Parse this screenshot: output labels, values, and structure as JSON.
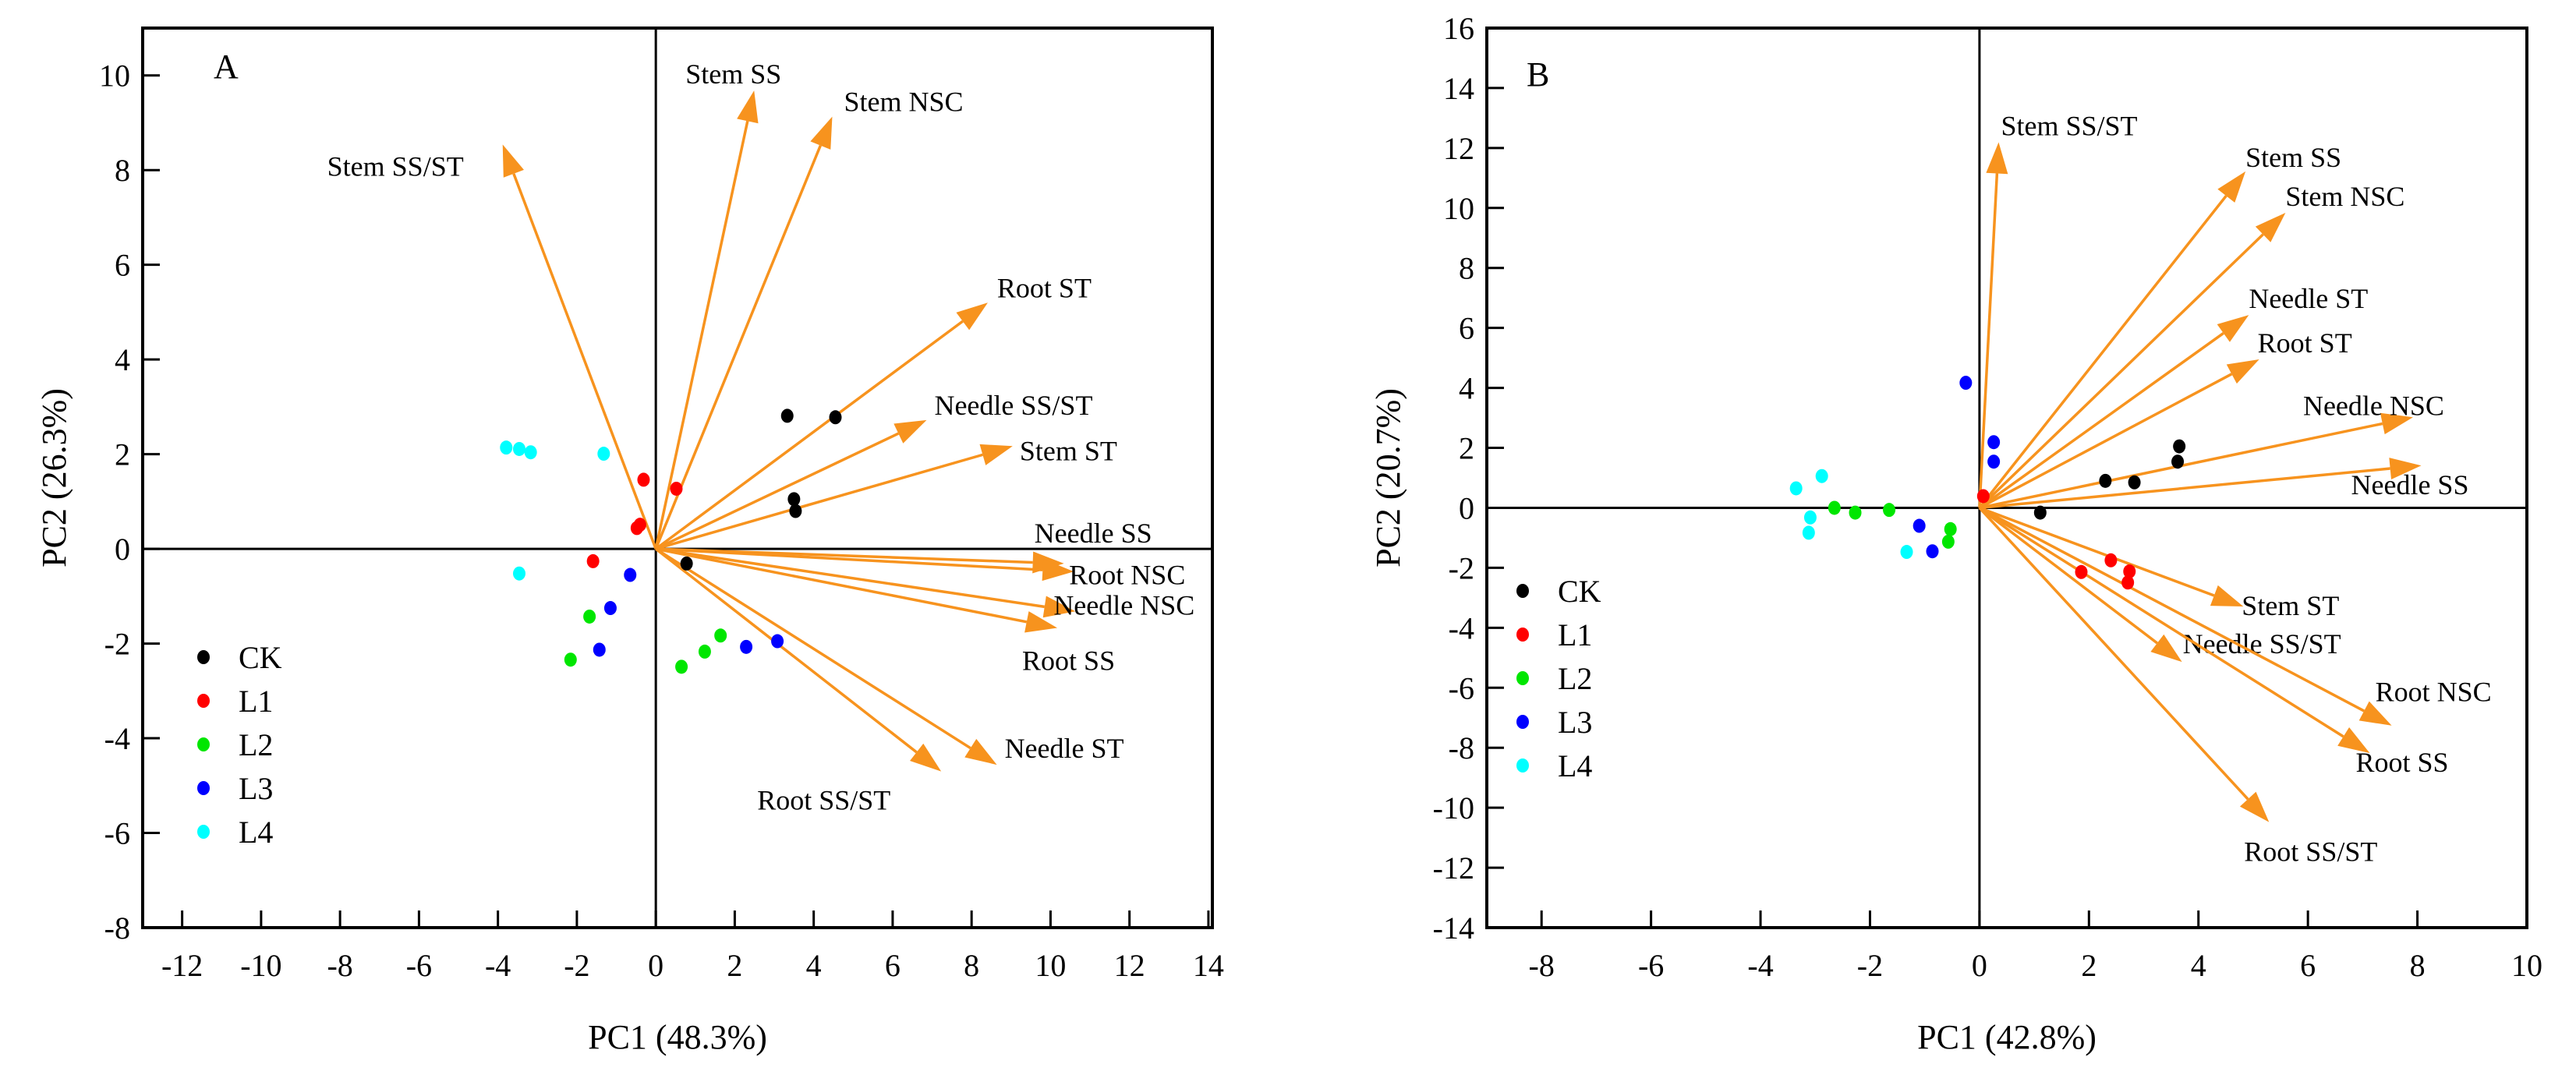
{
  "chart_data": [
    {
      "type": "scatter",
      "subtype": "pca-biplot",
      "panel_label": "A",
      "xlabel": "PC1 (48.3%)",
      "ylabel": "PC2 (26.3%)",
      "xlim": [
        -13,
        14.1
      ],
      "ylim": [
        -8,
        11
      ],
      "xticks": [
        -12,
        -10,
        -8,
        -6,
        -4,
        -2,
        0,
        2,
        4,
        6,
        8,
        10,
        12,
        14
      ],
      "yticks": [
        -8,
        -6,
        -4,
        -2,
        0,
        2,
        4,
        6,
        8,
        10
      ],
      "legend_position": "bottom-left",
      "series": [
        {
          "name": "CK",
          "color": "#000000",
          "points": [
            [
              3.33,
              2.81
            ],
            [
              4.55,
              2.78
            ],
            [
              3.5,
              1.05
            ],
            [
              3.54,
              0.8
            ],
            [
              0.78,
              -0.31
            ]
          ]
        },
        {
          "name": "L1",
          "color": "#ff0000",
          "points": [
            [
              -0.31,
              1.46
            ],
            [
              0.52,
              1.27
            ],
            [
              -0.48,
              0.44
            ],
            [
              -0.4,
              0.51
            ],
            [
              -1.59,
              -0.26
            ]
          ]
        },
        {
          "name": "L2",
          "color": "#00e600",
          "points": [
            [
              -1.68,
              -1.43
            ],
            [
              -2.16,
              -2.34
            ],
            [
              0.65,
              -2.49
            ],
            [
              1.24,
              -2.17
            ],
            [
              1.64,
              -1.83
            ]
          ]
        },
        {
          "name": "L3",
          "color": "#0000ff",
          "points": [
            [
              -0.65,
              -0.55
            ],
            [
              -1.15,
              -1.25
            ],
            [
              -1.43,
              -2.13
            ],
            [
              2.29,
              -2.07
            ],
            [
              3.08,
              -1.95
            ]
          ]
        },
        {
          "name": "L4",
          "color": "#00ffff",
          "points": [
            [
              -3.79,
              2.14
            ],
            [
              -3.46,
              2.11
            ],
            [
              -3.17,
              2.04
            ],
            [
              -1.32,
              2.01
            ],
            [
              -3.46,
              -0.52
            ]
          ]
        }
      ],
      "loadings": [
        {
          "name": "Stem SS/ST",
          "x": -3.88,
          "y": 8.54
        },
        {
          "name": "Stem SS",
          "x": 2.49,
          "y": 9.68
        },
        {
          "name": "Stem NSC",
          "x": 4.47,
          "y": 9.13
        },
        {
          "name": "Root ST",
          "x": 8.41,
          "y": 5.2
        },
        {
          "name": "Needle SS/ST",
          "x": 6.86,
          "y": 2.72
        },
        {
          "name": "Stem ST",
          "x": 9.04,
          "y": 2.17
        },
        {
          "name": "Needle SS",
          "x": 10.34,
          "y": -0.31
        },
        {
          "name": "Root NSC",
          "x": 10.59,
          "y": -0.48
        },
        {
          "name": "Needle NSC",
          "x": 10.63,
          "y": -1.32
        },
        {
          "name": "Root SS",
          "x": 10.17,
          "y": -1.67
        },
        {
          "name": "Needle ST",
          "x": 8.64,
          "y": -4.56
        },
        {
          "name": "Root SS/ST",
          "x": 7.23,
          "y": -4.7
        }
      ],
      "loading_color": "#f7931e"
    },
    {
      "type": "scatter",
      "subtype": "pca-biplot",
      "panel_label": "B",
      "xlabel": "PC1 (42.8%)",
      "ylabel": "PC2 (20.7%)",
      "xlim": [
        -9,
        10
      ],
      "ylim": [
        -14,
        16
      ],
      "xticks": [
        -8,
        -6,
        -4,
        -2,
        0,
        2,
        4,
        6,
        8,
        10
      ],
      "yticks": [
        -14,
        -12,
        -10,
        -8,
        -6,
        -4,
        -2,
        0,
        2,
        4,
        6,
        8,
        10,
        12,
        14,
        16
      ],
      "legend_position": "middle-left",
      "series": [
        {
          "name": "CK",
          "color": "#000000",
          "points": [
            [
              1.11,
              -0.16
            ],
            [
              2.3,
              0.9
            ],
            [
              2.83,
              0.85
            ],
            [
              3.62,
              1.54
            ],
            [
              3.65,
              2.05
            ]
          ]
        },
        {
          "name": "L1",
          "color": "#ff0000",
          "points": [
            [
              0.07,
              0.39
            ],
            [
              1.86,
              -2.14
            ],
            [
              2.4,
              -1.75
            ],
            [
              2.74,
              -2.12
            ],
            [
              2.71,
              -2.49
            ]
          ]
        },
        {
          "name": "L2",
          "color": "#00e600",
          "points": [
            [
              -2.65,
              0.0
            ],
            [
              -2.27,
              -0.16
            ],
            [
              -1.65,
              -0.07
            ],
            [
              -0.53,
              -0.71
            ],
            [
              -0.57,
              -1.13
            ]
          ]
        },
        {
          "name": "L3",
          "color": "#0000ff",
          "points": [
            [
              -0.25,
              4.17
            ],
            [
              0.26,
              2.19
            ],
            [
              0.26,
              1.54
            ],
            [
              -1.1,
              -0.6
            ],
            [
              -0.86,
              -1.45
            ]
          ]
        },
        {
          "name": "L4",
          "color": "#00ffff",
          "points": [
            [
              -3.35,
              0.65
            ],
            [
              -2.88,
              1.06
            ],
            [
              -3.09,
              -0.32
            ],
            [
              -3.12,
              -0.83
            ],
            [
              -1.33,
              -1.47
            ]
          ]
        }
      ],
      "loadings": [
        {
          "name": "Stem SS/ST",
          "x": 0.35,
          "y": 12.19
        },
        {
          "name": "Stem SS",
          "x": 4.86,
          "y": 11.22
        },
        {
          "name": "Stem NSC",
          "x": 5.59,
          "y": 9.84
        },
        {
          "name": "Needle ST",
          "x": 4.92,
          "y": 6.43
        },
        {
          "name": "Root ST",
          "x": 5.11,
          "y": 4.95
        },
        {
          "name": "Needle NSC",
          "x": 7.92,
          "y": 3.02
        },
        {
          "name": "Needle SS",
          "x": 8.07,
          "y": 1.41
        },
        {
          "name": "Stem ST",
          "x": 4.82,
          "y": -3.29
        },
        {
          "name": "Needle SS/ST",
          "x": 3.7,
          "y": -5.14
        },
        {
          "name": "Root NSC",
          "x": 7.53,
          "y": -7.26
        },
        {
          "name": "Root SS",
          "x": 7.13,
          "y": -8.18
        },
        {
          "name": "Root SS/ST",
          "x": 5.29,
          "y": -10.48
        }
      ],
      "loading_color": "#f7931e"
    }
  ]
}
